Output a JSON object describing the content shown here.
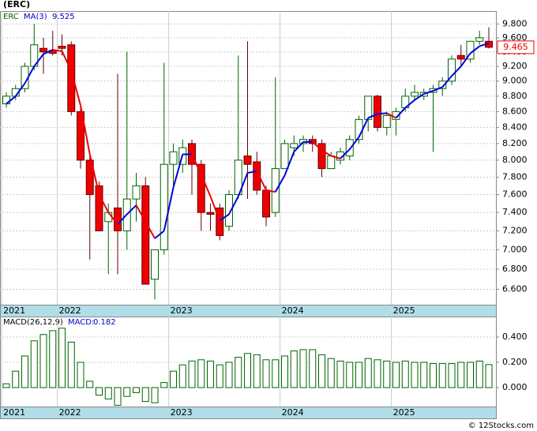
{
  "chart_data": [
    {
      "type": "candlestick",
      "title": "(ERC)",
      "ticker": "ERC",
      "ma_label": "MA(3)",
      "log_scale": true,
      "grid": true,
      "categories": [
        "2021",
        null,
        null,
        null,
        null,
        null,
        "2022",
        null,
        null,
        null,
        null,
        null,
        null,
        null,
        null,
        null,
        null,
        null,
        "2023",
        null,
        null,
        null,
        null,
        null,
        null,
        null,
        null,
        null,
        null,
        null,
        "2024",
        null,
        null,
        null,
        null,
        null,
        null,
        null,
        null,
        null,
        null,
        null,
        "2025",
        null,
        null,
        null,
        null,
        null,
        null,
        null,
        null,
        null,
        null
      ],
      "open": [
        8.7,
        8.8,
        8.9,
        9.2,
        9.45,
        9.42,
        9.48,
        9.5,
        8.6,
        8.0,
        7.7,
        7.3,
        7.45,
        7.2,
        7.55,
        7.7,
        6.7,
        7.0,
        7.95,
        7.95,
        8.2,
        7.95,
        7.4,
        7.45,
        7.25,
        7.6,
        8.05,
        7.98,
        7.65,
        7.4,
        7.9,
        8.15,
        8.2,
        8.25,
        8.2,
        7.9,
        8.0,
        8.05,
        8.25,
        8.5,
        8.8,
        8.4,
        8.5,
        8.65,
        8.8,
        8.8,
        8.85,
        8.9,
        9.0,
        9.35,
        9.3,
        9.55,
        9.55
      ],
      "high": [
        8.85,
        8.95,
        9.25,
        9.8,
        9.6,
        9.7,
        9.65,
        9.55,
        8.65,
        8.05,
        7.75,
        7.5,
        9.1,
        9.4,
        7.85,
        7.8,
        7.0,
        9.25,
        8.2,
        8.25,
        8.25,
        8.0,
        7.5,
        7.5,
        7.65,
        9.35,
        9.55,
        8.1,
        7.7,
        9.05,
        8.25,
        8.3,
        8.3,
        8.3,
        8.25,
        8.1,
        8.15,
        8.3,
        8.55,
        8.8,
        8.82,
        8.6,
        8.65,
        8.9,
        8.95,
        8.9,
        8.95,
        9.05,
        9.35,
        9.5,
        9.55,
        9.7,
        9.75
      ],
      "low": [
        8.65,
        8.75,
        8.85,
        9.15,
        9.1,
        9.35,
        9.35,
        8.55,
        7.9,
        6.9,
        7.2,
        6.75,
        6.75,
        7.0,
        7.3,
        6.65,
        6.5,
        6.95,
        7.7,
        7.85,
        7.6,
        7.2,
        7.2,
        7.1,
        7.2,
        7.55,
        7.55,
        7.6,
        7.25,
        7.35,
        7.9,
        8.05,
        8.1,
        8.1,
        7.8,
        7.9,
        7.95,
        8.0,
        8.2,
        8.35,
        8.35,
        8.3,
        8.3,
        8.6,
        8.75,
        8.75,
        8.1,
        8.8,
        8.95,
        9.2,
        9.25,
        9.5,
        9.45
      ],
      "close": [
        8.8,
        8.9,
        9.2,
        9.5,
        9.4,
        9.38,
        9.45,
        8.6,
        8.0,
        7.6,
        7.2,
        7.4,
        7.2,
        7.55,
        7.7,
        6.65,
        7.0,
        7.95,
        8.1,
        8.15,
        7.95,
        7.4,
        7.38,
        7.15,
        7.6,
        8.0,
        7.95,
        7.65,
        7.35,
        7.9,
        8.2,
        8.2,
        8.25,
        8.2,
        7.9,
        8.05,
        8.1,
        8.25,
        8.5,
        8.8,
        8.4,
        8.55,
        8.6,
        8.8,
        8.85,
        8.85,
        8.9,
        9.0,
        9.3,
        9.3,
        9.55,
        9.6,
        9.465
      ],
      "ma": {
        "name": "MA(3)",
        "up_color": "#0000dd",
        "down_color": "#ee0000",
        "values": [
          8.7,
          8.8,
          8.97,
          9.2,
          9.37,
          9.43,
          9.41,
          9.14,
          8.68,
          8.07,
          7.6,
          7.4,
          7.27,
          7.38,
          7.48,
          7.3,
          7.12,
          7.2,
          7.68,
          8.07,
          8.07,
          7.83,
          7.58,
          7.31,
          7.38,
          7.58,
          7.85,
          7.87,
          7.65,
          7.63,
          7.82,
          8.1,
          8.22,
          8.22,
          8.12,
          8.05,
          8.02,
          8.13,
          8.28,
          8.52,
          8.57,
          8.58,
          8.52,
          8.65,
          8.75,
          8.83,
          8.87,
          8.92,
          9.07,
          9.2,
          9.38,
          9.48,
          9.525
        ]
      },
      "up_color": "#006400",
      "down_color": "#ee0000",
      "ylim": [
        6.45,
        9.99
      ],
      "yticks": [
        {
          "value": 6.6,
          "label": "6.600"
        },
        {
          "value": 6.8,
          "label": "6.800"
        },
        {
          "value": 7.0,
          "label": "7.000"
        },
        {
          "value": 7.2,
          "label": "7.200"
        },
        {
          "value": 7.4,
          "label": "7.400"
        },
        {
          "value": 7.6,
          "label": "7.600"
        },
        {
          "value": 7.8,
          "label": "7.800"
        },
        {
          "value": 8.0,
          "label": "8.000"
        },
        {
          "value": 8.2,
          "label": "8.200"
        },
        {
          "value": 8.4,
          "label": "8.400"
        },
        {
          "value": 8.6,
          "label": "8.600"
        },
        {
          "value": 8.8,
          "label": "8.800"
        },
        {
          "value": 9.0,
          "label": "9.000"
        },
        {
          "value": 9.2,
          "label": "9.200"
        },
        {
          "value": 9.4,
          "label": "9.400"
        },
        {
          "value": 9.6,
          "label": "9.600"
        },
        {
          "value": 9.8,
          "label": "9.800"
        }
      ]
    },
    {
      "type": "bar",
      "title": "MACD(26,12,9)",
      "legend_label": "MACD:",
      "color": "#006400",
      "grid": true,
      "values": [
        0.03,
        0.13,
        0.25,
        0.37,
        0.42,
        0.45,
        0.47,
        0.36,
        0.2,
        0.05,
        -0.06,
        -0.09,
        -0.14,
        -0.07,
        -0.04,
        -0.11,
        -0.12,
        0.04,
        0.13,
        0.18,
        0.21,
        0.22,
        0.21,
        0.18,
        0.2,
        0.24,
        0.27,
        0.26,
        0.22,
        0.22,
        0.25,
        0.29,
        0.3,
        0.3,
        0.26,
        0.23,
        0.21,
        0.2,
        0.2,
        0.23,
        0.22,
        0.21,
        0.2,
        0.21,
        0.2,
        0.2,
        0.19,
        0.19,
        0.19,
        0.2,
        0.2,
        0.21,
        0.182
      ],
      "ylim": [
        -0.15,
        0.556
      ],
      "yticks": [
        {
          "value": 0.0,
          "label": "0.000"
        },
        {
          "value": 0.2,
          "label": "0.200"
        },
        {
          "value": 0.4,
          "label": "0.400"
        }
      ]
    }
  ],
  "footer": "© 12Stocks.com"
}
